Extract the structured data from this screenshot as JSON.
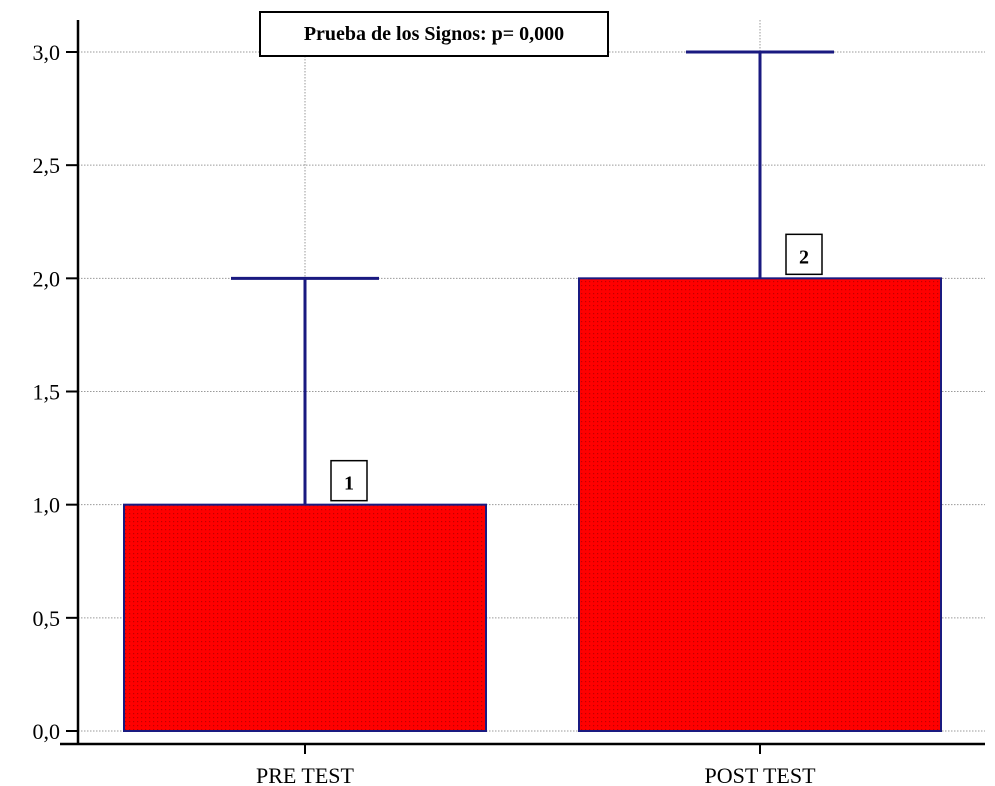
{
  "chart_data": {
    "type": "bar",
    "categories": [
      "PRE TEST",
      "POST TEST"
    ],
    "values": [
      1,
      2
    ],
    "error_upper": [
      2,
      3
    ],
    "data_labels": [
      "1",
      "2"
    ],
    "title": "",
    "xlabel": "",
    "ylabel": "",
    "ylim": [
      0,
      3
    ],
    "yticks": [
      "0,0",
      "0,5",
      "1,0",
      "1,5",
      "2,0",
      "2,5",
      "3,0"
    ],
    "annotation": "Prueba de los Signos: p= 0,000",
    "grid": true,
    "colors": {
      "bar_fill": "#ff0000",
      "bar_dots": "#8b0000",
      "bar_stroke": "#1a1a80",
      "error_bar": "#1a1a80",
      "grid": "#9a9a9a"
    }
  }
}
